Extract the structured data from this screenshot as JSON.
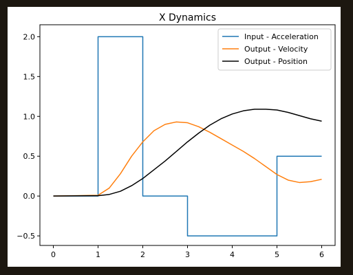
{
  "chart_data": {
    "type": "line",
    "title": "X Dynamics",
    "xlabel": "",
    "ylabel": "",
    "xlim": [
      -0.3,
      6.3
    ],
    "ylim": [
      -0.62,
      2.15
    ],
    "xticks": [
      0,
      1,
      2,
      3,
      4,
      5,
      6
    ],
    "yticks": [
      -0.5,
      0.0,
      0.5,
      1.0,
      1.5,
      2.0
    ],
    "xtick_labels": [
      "0",
      "1",
      "2",
      "3",
      "4",
      "5",
      "6"
    ],
    "ytick_labels": [
      "−0.5",
      "0.0",
      "0.5",
      "1.0",
      "1.5",
      "2.0"
    ],
    "grid": false,
    "legend_position": "top-right",
    "series": [
      {
        "name": "Input - Acceleration",
        "color": "#1f77b4",
        "step": true,
        "x": [
          0,
          1,
          1,
          2,
          2,
          3,
          3,
          5,
          5,
          6
        ],
        "y": [
          0,
          0,
          2,
          2,
          0,
          0,
          -0.5,
          -0.5,
          0.5,
          0.5
        ]
      },
      {
        "name": "Output - Velocity",
        "color": "#ff7f0e",
        "step": false,
        "x": [
          0,
          0.5,
          1.0,
          1.25,
          1.5,
          1.75,
          2.0,
          2.25,
          2.5,
          2.75,
          3.0,
          3.25,
          3.5,
          3.75,
          4.0,
          4.25,
          4.5,
          4.75,
          5.0,
          5.25,
          5.5,
          5.75,
          6.0
        ],
        "y": [
          0,
          0.005,
          0.01,
          0.1,
          0.28,
          0.5,
          0.68,
          0.82,
          0.9,
          0.93,
          0.92,
          0.87,
          0.8,
          0.72,
          0.64,
          0.56,
          0.47,
          0.37,
          0.27,
          0.2,
          0.17,
          0.18,
          0.21
        ]
      },
      {
        "name": "Output - Position",
        "color": "#000000",
        "step": false,
        "x": [
          0,
          0.5,
          1.0,
          1.25,
          1.5,
          1.75,
          2.0,
          2.25,
          2.5,
          2.75,
          3.0,
          3.25,
          3.5,
          3.75,
          4.0,
          4.25,
          4.5,
          4.75,
          5.0,
          5.25,
          5.5,
          5.75,
          6.0
        ],
        "y": [
          0,
          0.002,
          0.005,
          0.02,
          0.06,
          0.13,
          0.22,
          0.33,
          0.44,
          0.56,
          0.68,
          0.79,
          0.89,
          0.97,
          1.03,
          1.07,
          1.09,
          1.09,
          1.08,
          1.05,
          1.01,
          0.97,
          0.94
        ]
      }
    ]
  }
}
